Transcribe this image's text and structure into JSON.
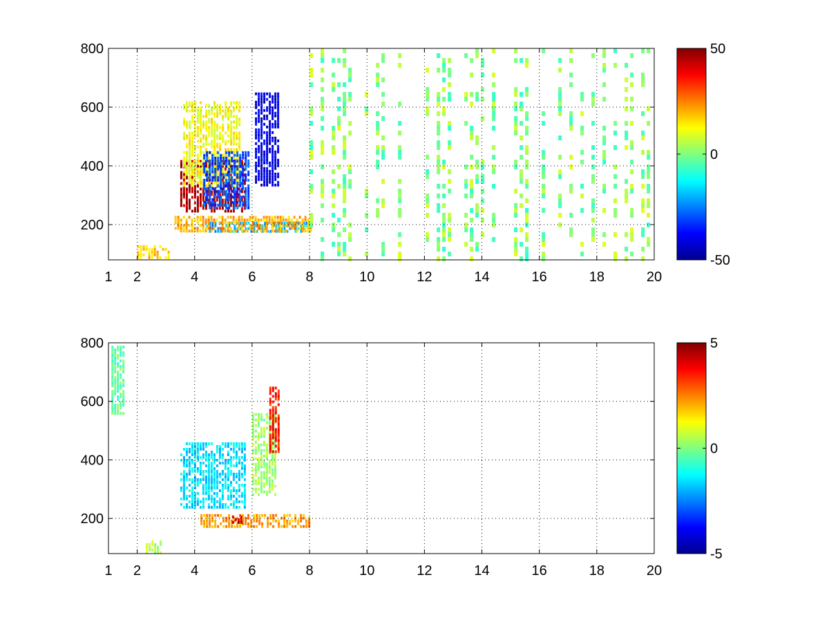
{
  "chart_data": [
    {
      "type": "heatmap",
      "title": "",
      "xlabel": "",
      "ylabel": "",
      "xlim": [
        1,
        20
      ],
      "ylim": [
        80,
        800
      ],
      "xticks": [
        "1",
        "2",
        "4",
        "6",
        "8",
        "10",
        "12",
        "14",
        "16",
        "18",
        "20"
      ],
      "yticks": [
        "200",
        "400",
        "600",
        "800"
      ],
      "grid": true,
      "colormap": "jet",
      "colorbar": {
        "min": -50,
        "max": 50,
        "ticks": [
          "50",
          "0",
          "-50"
        ]
      },
      "features": [
        {
          "kind": "band",
          "x": [
            3.5,
            5.8
          ],
          "y": [
            250,
            420
          ],
          "value": 45
        },
        {
          "kind": "band",
          "x": [
            3.6,
            5.6
          ],
          "y": [
            330,
            620
          ],
          "value": 12
        },
        {
          "kind": "band",
          "x": [
            4.3,
            5.9
          ],
          "y": [
            260,
            450
          ],
          "value": -30
        },
        {
          "kind": "band",
          "x": [
            6.1,
            6.9
          ],
          "y": [
            330,
            650
          ],
          "value": -40
        },
        {
          "kind": "band",
          "x": [
            4.4,
            8.0
          ],
          "y": [
            180,
            210
          ],
          "value": -20
        },
        {
          "kind": "band",
          "x": [
            3.3,
            8.1
          ],
          "y": [
            175,
            230
          ],
          "value": 20
        },
        {
          "kind": "band",
          "x": [
            2.0,
            3.1
          ],
          "y": [
            85,
            130
          ],
          "value": 18
        },
        {
          "kind": "scatter-columns",
          "x": [
            8.0,
            20.0
          ],
          "y": [
            80,
            800
          ],
          "value_range": [
            -8,
            10
          ]
        }
      ]
    },
    {
      "type": "heatmap",
      "title": "",
      "xlabel": "",
      "ylabel": "",
      "xlim": [
        1,
        20
      ],
      "ylim": [
        80,
        800
      ],
      "xticks": [
        "1",
        "2",
        "4",
        "6",
        "8",
        "10",
        "12",
        "14",
        "16",
        "18",
        "20"
      ],
      "yticks": [
        "200",
        "400",
        "600",
        "800"
      ],
      "grid": true,
      "colormap": "jet",
      "colorbar": {
        "min": -5,
        "max": 5,
        "ticks": [
          "5",
          "0",
          "-5"
        ]
      },
      "features": [
        {
          "kind": "band",
          "x": [
            3.5,
            5.8
          ],
          "y": [
            240,
            460
          ],
          "value": -1.5
        },
        {
          "kind": "band",
          "x": [
            6.0,
            6.8
          ],
          "y": [
            280,
            560
          ],
          "value": 0.3
        },
        {
          "kind": "band",
          "x": [
            6.6,
            6.9
          ],
          "y": [
            430,
            650
          ],
          "value": 3.5
        },
        {
          "kind": "band",
          "x": [
            4.2,
            8.0
          ],
          "y": [
            175,
            215
          ],
          "value": 2.2
        },
        {
          "kind": "band",
          "x": [
            5.3,
            5.6
          ],
          "y": [
            190,
            210
          ],
          "value": 4.5
        },
        {
          "kind": "band",
          "x": [
            2.3,
            2.8
          ],
          "y": [
            85,
            125
          ],
          "value": 0.5
        },
        {
          "kind": "band",
          "x": [
            1.1,
            1.5
          ],
          "y": [
            560,
            790
          ],
          "value": -0.3
        }
      ]
    }
  ]
}
